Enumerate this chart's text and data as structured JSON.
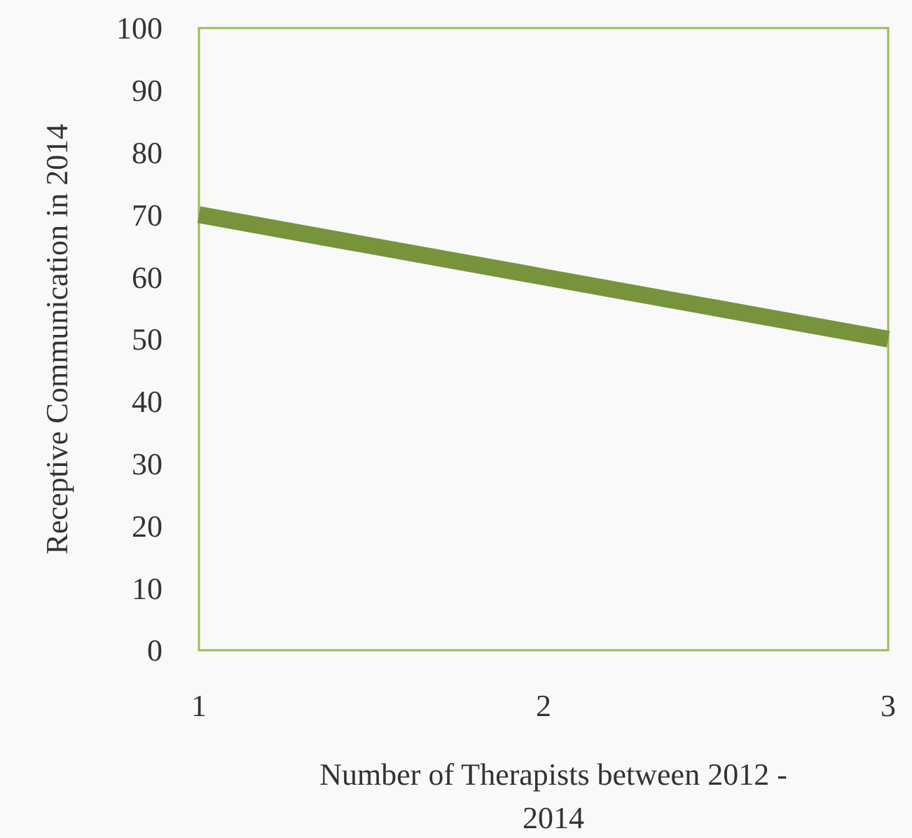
{
  "chart_data": {
    "type": "line",
    "xlabel": "Number of Therapists between 2012 - 2014",
    "ylabel": "Receptive Communication in 2014",
    "x": [
      1,
      2,
      3
    ],
    "series": [
      {
        "color": "#77933c",
        "values": [
          70,
          60,
          50
        ]
      }
    ],
    "xlim": [
      1,
      3
    ],
    "xticks": [
      1,
      2,
      3
    ],
    "ylim": [
      0,
      100
    ],
    "yticks": [
      0,
      10,
      20,
      30,
      40,
      50,
      60,
      70,
      80,
      90,
      100
    ],
    "grid": false,
    "marker": "none",
    "line_style": "solid"
  }
}
